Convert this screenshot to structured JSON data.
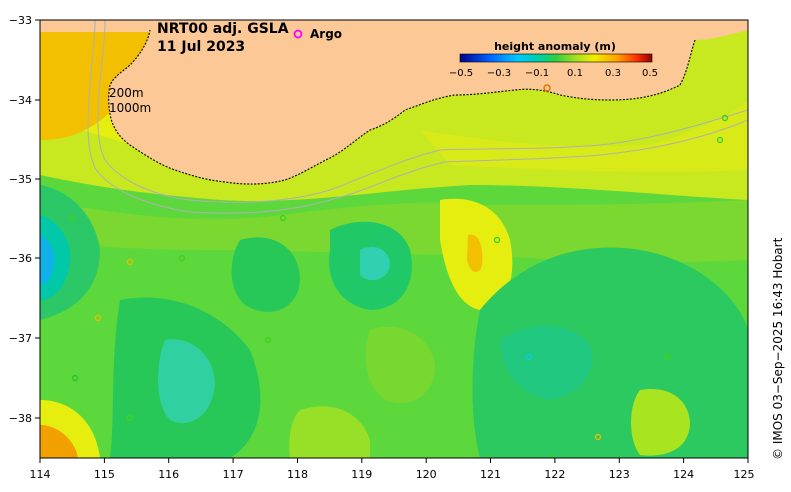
{
  "title_line1": "NRT00 adj. GSLA",
  "title_line2": "11 Jul 2023",
  "legend_argo": "Argo",
  "isobath_200": "200m",
  "isobath_1000": "1000m",
  "colorbar": {
    "title": "height anomaly (m)",
    "ticks": [
      "−0.5",
      "−0.3",
      "−0.1",
      "0.1",
      "0.3",
      "0.5"
    ]
  },
  "axes": {
    "x_ticks": [
      "114",
      "115",
      "116",
      "117",
      "118",
      "119",
      "120",
      "121",
      "122",
      "123",
      "124",
      "125"
    ],
    "y_ticks": [
      "−33",
      "−34",
      "−35",
      "−36",
      "−37",
      "−38"
    ]
  },
  "credit": "© IMOS 03−Sep−2025 16:43 Hobart",
  "colors": {
    "land": "#fbc896",
    "argo_marker": "#ff00ff"
  }
}
